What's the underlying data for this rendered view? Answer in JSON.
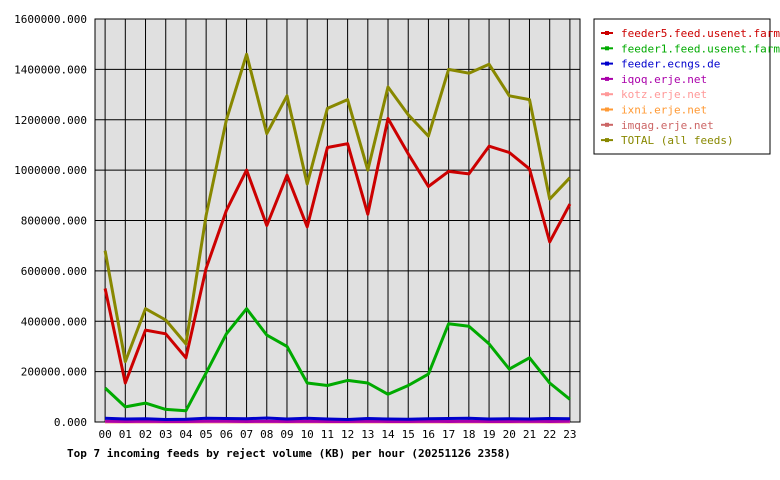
{
  "chart_data": {
    "type": "line",
    "title": "Top 7 incoming feeds by reject volume (KB) per hour (20251126 2358)",
    "categories": [
      "00",
      "01",
      "02",
      "03",
      "04",
      "05",
      "06",
      "07",
      "08",
      "09",
      "10",
      "11",
      "12",
      "13",
      "14",
      "15",
      "16",
      "17",
      "18",
      "19",
      "20",
      "21",
      "22",
      "23"
    ],
    "ylim": [
      0,
      1600000
    ],
    "y_ticks": [
      "0.000",
      "200000.000",
      "400000.000",
      "600000.000",
      "800000.000",
      "1000000.000",
      "1200000.000",
      "1400000.000",
      "1600000.000"
    ],
    "grid": true,
    "legend_position": "right",
    "series": [
      {
        "name": "feeder5.feed.usenet.farm",
        "color": "#cc0000",
        "values": [
          530000,
          155000,
          365000,
          350000,
          255000,
          610000,
          840000,
          1000000,
          780000,
          980000,
          775000,
          1090000,
          1105000,
          825000,
          1205000,
          1065000,
          935000,
          995000,
          985000,
          1095000,
          1070000,
          1005000,
          715000,
          865000
        ]
      },
      {
        "name": "feeder1.feed.usenet.farm",
        "color": "#00aa00",
        "values": [
          135000,
          60000,
          75000,
          50000,
          45000,
          195000,
          350000,
          450000,
          345000,
          300000,
          155000,
          145000,
          165000,
          155000,
          110000,
          145000,
          190000,
          390000,
          380000,
          310000,
          210000,
          255000,
          155000,
          90000
        ]
      },
      {
        "name": "feeder.ecngs.de",
        "color": "#0000cc",
        "values": [
          15000,
          12000,
          13000,
          10000,
          11000,
          15000,
          14000,
          13000,
          16000,
          12000,
          15000,
          12000,
          10000,
          14000,
          12000,
          11000,
          13000,
          14000,
          15000,
          12000,
          13000,
          12000,
          14000,
          13000
        ]
      },
      {
        "name": "iqoq.erje.net",
        "color": "#aa00aa",
        "values": [
          3000,
          2000,
          3000,
          2000,
          2000,
          3000,
          3000,
          2000,
          3000,
          2000,
          3000,
          2000,
          2000,
          3000,
          2000,
          2000,
          3000,
          2000,
          3000,
          2000,
          2000,
          3000,
          2000,
          3000
        ]
      },
      {
        "name": "kotz.erje.net",
        "color": "#ff9999",
        "values": [
          1000,
          1000,
          1000,
          1000,
          1000,
          1000,
          1000,
          1000,
          1000,
          1000,
          1000,
          1000,
          1000,
          1000,
          1000,
          1000,
          1000,
          1000,
          1000,
          1000,
          1000,
          1000,
          1000,
          1000
        ]
      },
      {
        "name": "ixni.erje.net",
        "color": "#ff9933",
        "values": [
          1000,
          1000,
          1000,
          1000,
          1000,
          1000,
          1000,
          1000,
          1000,
          1000,
          1000,
          1000,
          1000,
          1000,
          1000,
          1000,
          1000,
          1000,
          1000,
          1000,
          1000,
          1000,
          1000,
          1000
        ]
      },
      {
        "name": "imqag.erje.net",
        "color": "#cc6666",
        "values": [
          1000,
          1000,
          1000,
          1000,
          1000,
          1000,
          1000,
          1000,
          1000,
          1000,
          1000,
          1000,
          1000,
          1000,
          1000,
          1000,
          1000,
          1000,
          1000,
          1000,
          1000,
          1000,
          1000,
          1000
        ]
      },
      {
        "name": "TOTAL (all feeds)",
        "color": "#888800",
        "values": [
          680000,
          240000,
          450000,
          405000,
          310000,
          820000,
          1200000,
          1460000,
          1145000,
          1295000,
          945000,
          1245000,
          1280000,
          1000000,
          1330000,
          1220000,
          1135000,
          1400000,
          1385000,
          1420000,
          1295000,
          1280000,
          885000,
          970000
        ]
      }
    ]
  }
}
